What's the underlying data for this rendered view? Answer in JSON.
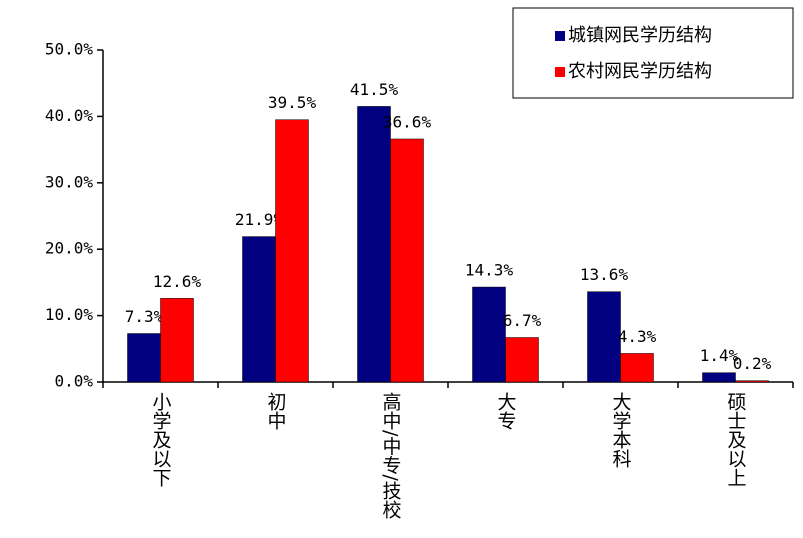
{
  "chart_data": {
    "type": "bar",
    "categories": [
      "小学及以下",
      "初中",
      "高中/中专/技校",
      "大专",
      "大学本科",
      "硕士及以上"
    ],
    "series": [
      {
        "name": "城镇网民学历结构",
        "color": "#000080",
        "values": [
          7.3,
          21.9,
          41.5,
          14.3,
          13.6,
          1.4
        ],
        "value_labels": [
          "7.3%",
          "21.9%",
          "41.5%",
          "14.3%",
          "13.6%",
          "1.4%"
        ]
      },
      {
        "name": "农村网民学历结构",
        "color": "#ff0000",
        "values": [
          12.6,
          39.5,
          36.6,
          6.7,
          4.3,
          0.2
        ],
        "value_labels": [
          "12.6%",
          "39.5%",
          "36.6%",
          "6.7%",
          "4.3%",
          "0.2%"
        ]
      }
    ],
    "ylim": [
      0,
      50
    ],
    "yticks": [
      {
        "value": 0,
        "label": "0.0%"
      },
      {
        "value": 10,
        "label": "10.0%"
      },
      {
        "value": 20,
        "label": "20.0%"
      },
      {
        "value": 30,
        "label": "30.0%"
      },
      {
        "value": 40,
        "label": "40.0%"
      },
      {
        "value": 50,
        "label": "50.0%"
      }
    ],
    "grid": false,
    "legend": "upper right"
  }
}
